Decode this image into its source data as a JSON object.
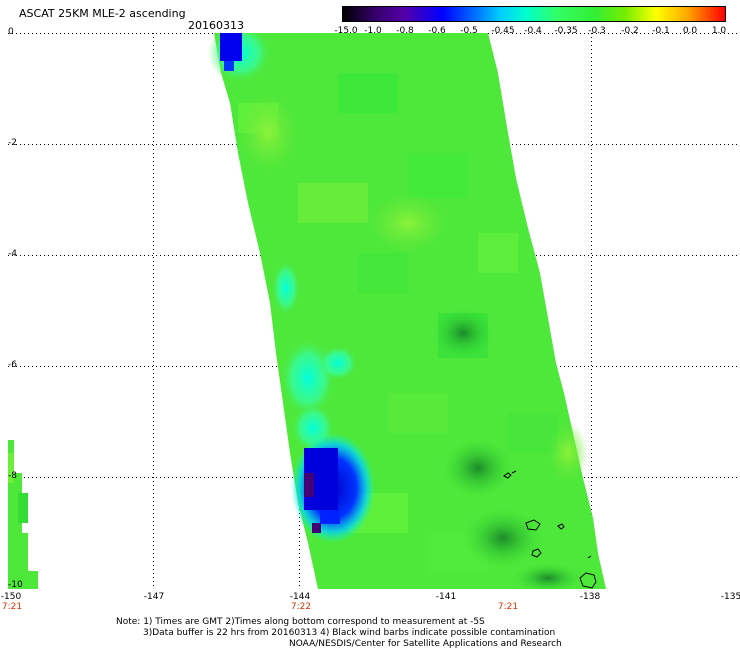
{
  "header": {
    "title": "ASCAT 25KM MLE-2 ascending",
    "date": "20160313"
  },
  "colorbar": {
    "labels": [
      "-15.0",
      "-1.0",
      "-0.8",
      "-0.6",
      "-0.5",
      "-0.45",
      "-0.4",
      "-0.35",
      "-0.3",
      "-0.2",
      "-0.1",
      "0.0",
      "1.0"
    ]
  },
  "axes": {
    "y_ticks": [
      "0",
      "-2",
      "-4",
      "-6",
      "-8",
      "-10"
    ],
    "x_ticks": [
      "-150",
      "-147",
      "-144",
      "-141",
      "-138",
      "-135"
    ],
    "time_labels": [
      "7:21",
      "7:22",
      "7:21"
    ]
  },
  "notes": {
    "line1": "Note: 1) Times are GMT 2)Times along bottom correspond to measurement at -5S",
    "line2": "3)Data buffer is 22 hrs from 20160313 4) Black wind barbs indicate possible contamination",
    "line3": "NOAA/NESDIS/Center for Satellite Applications and Research"
  },
  "colors": {
    "swath_main": "#4ee83a",
    "cyan": "#00ffdd",
    "blue": "#0000ee",
    "purple": "#440077",
    "light_green": "#7ef03a"
  }
}
